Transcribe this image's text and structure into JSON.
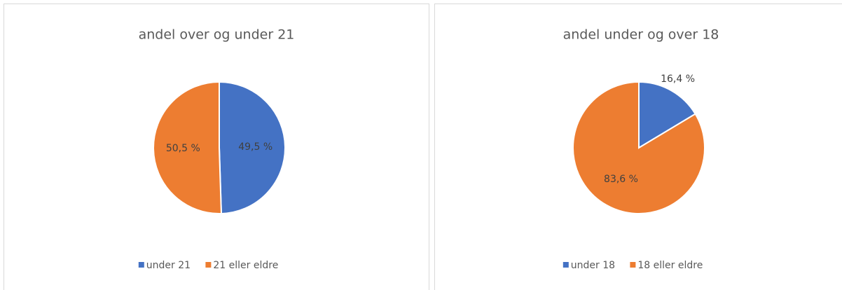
{
  "chart_data": [
    {
      "type": "pie",
      "title": "andel over og under 21",
      "categories": [
        "under 21",
        "21 eller eldre"
      ],
      "values": [
        49.5,
        50.5
      ],
      "value_labels": [
        "49,5 %",
        "50,5 %"
      ],
      "colors": [
        "#4472c4",
        "#ed7d31"
      ],
      "legend": "bottom"
    },
    {
      "type": "pie",
      "title": "andel under og over 18",
      "categories": [
        "under 18",
        "18 eller eldre"
      ],
      "values": [
        16.4,
        83.6
      ],
      "value_labels": [
        "16,4 %",
        "83,6 %"
      ],
      "colors": [
        "#4472c4",
        "#ed7d31"
      ],
      "legend": "bottom"
    }
  ]
}
